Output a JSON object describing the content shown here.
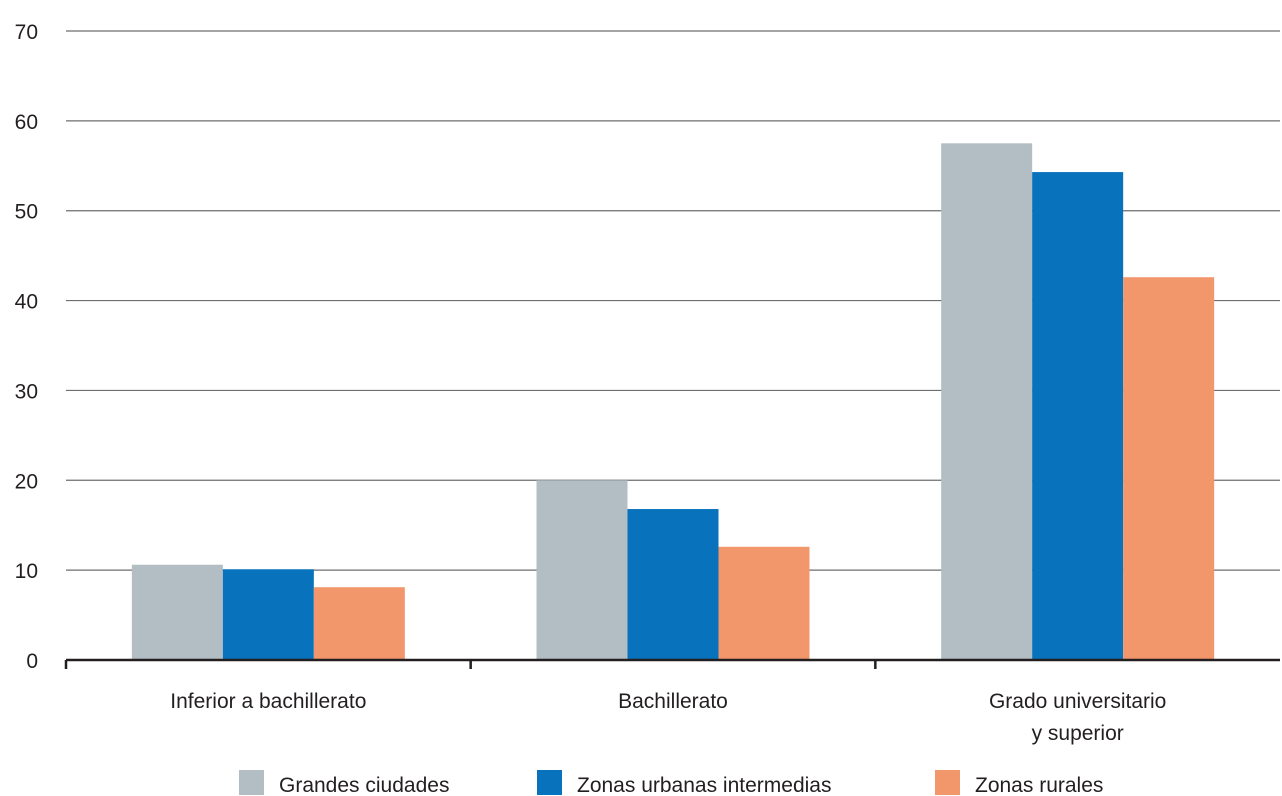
{
  "chart_data": {
    "type": "bar",
    "categories": [
      [
        "Inferior a bachillerato"
      ],
      [
        "Bachillerato"
      ],
      [
        "Grado universitario",
        "y superior"
      ]
    ],
    "series": [
      {
        "name": "Grandes ciudades",
        "color": "#b2bec3",
        "values": [
          10.6,
          20.0,
          57.5
        ]
      },
      {
        "name": "Zonas urbanas intermedias",
        "color": "#0872bd",
        "values": [
          10.1,
          16.8,
          54.3
        ]
      },
      {
        "name": "Zonas rurales",
        "color": "#f2976b",
        "values": [
          8.1,
          12.6,
          42.6
        ]
      }
    ],
    "ylim": [
      0,
      70
    ],
    "yticks": [
      0,
      10,
      20,
      30,
      40,
      50,
      60,
      70
    ],
    "grid": true,
    "legend": "bottom",
    "title": "",
    "xlabel": "",
    "ylabel": ""
  }
}
